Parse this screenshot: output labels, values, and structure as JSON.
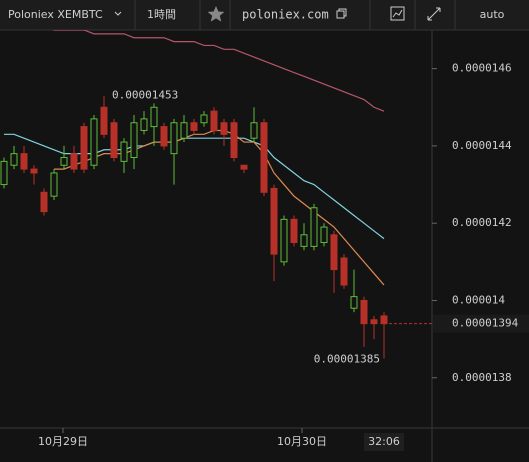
{
  "toolbar": {
    "symbol": "Poloniex XEMBTC",
    "interval": "1時間",
    "site": "poloniex.com",
    "scale": "auto"
  },
  "chart_data": {
    "type": "candlestick",
    "x": [
      0,
      1,
      2,
      3,
      4,
      5,
      6,
      7,
      8,
      9,
      10,
      11,
      12,
      13,
      14,
      15,
      16,
      17,
      18,
      19,
      20,
      21,
      22,
      23,
      24,
      25,
      26,
      27,
      28,
      29,
      30,
      31,
      32,
      33,
      34,
      35,
      36,
      37,
      38
    ],
    "open": [
      1.43e-05,
      1.435e-05,
      1.438e-05,
      1.434e-05,
      1.428e-05,
      1.427e-05,
      1.435e-05,
      1.438e-05,
      1.445e-05,
      1.435e-05,
      1.45e-05,
      1.446e-05,
      1.436e-05,
      1.437e-05,
      1.444e-05,
      1.445e-05,
      1.445e-05,
      1.438e-05,
      1.442e-05,
      1.446e-05,
      1.446e-05,
      1.449e-05,
      1.446e-05,
      1.446e-05,
      1.435e-05,
      1.442e-05,
      1.446e-05,
      1.429e-05,
      1.41e-05,
      1.421e-05,
      1.414e-05,
      1.414e-05,
      1.415e-05,
      1.417e-05,
      1.411e-05,
      1.398e-05,
      1.4e-05,
      1.395e-05,
      1.396e-05
    ],
    "high": [
      1.437e-05,
      1.44e-05,
      1.44e-05,
      1.435e-05,
      1.429e-05,
      1.434e-05,
      1.44e-05,
      1.44e-05,
      1.446e-05,
      1.448e-05,
      1.453e-05,
      1.447e-05,
      1.442e-05,
      1.448e-05,
      1.449e-05,
      1.451e-05,
      1.446e-05,
      1.447e-05,
      1.448e-05,
      1.447e-05,
      1.449e-05,
      1.45e-05,
      1.447e-05,
      1.447e-05,
      1.435e-05,
      1.45e-05,
      1.447e-05,
      1.43e-05,
      1.422e-05,
      1.422e-05,
      1.42e-05,
      1.425e-05,
      1.42e-05,
      1.418e-05,
      1.412e-05,
      1.408e-05,
      1.401e-05,
      1.396e-05,
      1.397e-05
    ],
    "low": [
      1.429e-05,
      1.434e-05,
      1.433e-05,
      1.43e-05,
      1.422e-05,
      1.426e-05,
      1.434e-05,
      1.433e-05,
      1.433e-05,
      1.434e-05,
      1.442e-05,
      1.436e-05,
      1.433e-05,
      1.434e-05,
      1.443e-05,
      1.44e-05,
      1.439e-05,
      1.43e-05,
      1.441e-05,
      1.443e-05,
      1.445e-05,
      1.443e-05,
      1.44e-05,
      1.436e-05,
      1.433e-05,
      1.441e-05,
      1.427e-05,
      1.405e-05,
      1.409e-05,
      1.414e-05,
      1.413e-05,
      1.413e-05,
      1.414e-05,
      1.402e-05,
      1.403e-05,
      1.397e-05,
      1.388e-05,
      1.39e-05,
      1.385e-05
    ],
    "close": [
      1.436e-05,
      1.438e-05,
      1.434e-05,
      1.433e-05,
      1.423e-05,
      1.433e-05,
      1.437e-05,
      1.434e-05,
      1.434e-05,
      1.447e-05,
      1.443e-05,
      1.437e-05,
      1.441e-05,
      1.446e-05,
      1.447e-05,
      1.45e-05,
      1.44e-05,
      1.446e-05,
      1.446e-05,
      1.444e-05,
      1.448e-05,
      1.444e-05,
      1.443e-05,
      1.437e-05,
      1.434e-05,
      1.446e-05,
      1.428e-05,
      1.412e-05,
      1.421e-05,
      1.415e-05,
      1.417e-05,
      1.424e-05,
      1.419e-05,
      1.408e-05,
      1.404e-05,
      1.401e-05,
      1.394e-05,
      1.394e-05,
      1.394e-05
    ],
    "up_color": "#5dbb3a",
    "down_color": "#b83129",
    "series": [
      {
        "color": "#b5566b",
        "values": [
          1.472e-05,
          1.472e-05,
          1.471e-05,
          1.471e-05,
          1.471e-05,
          1.47e-05,
          1.47e-05,
          1.47e-05,
          1.47e-05,
          1.469e-05,
          1.469e-05,
          1.469e-05,
          1.469e-05,
          1.468e-05,
          1.468e-05,
          1.468e-05,
          1.468e-05,
          1.467e-05,
          1.467e-05,
          1.467e-05,
          1.466e-05,
          1.466e-05,
          1.465e-05,
          1.465e-05,
          1.464e-05,
          1.463e-05,
          1.462e-05,
          1.461e-05,
          1.46e-05,
          1.459e-05,
          1.458e-05,
          1.457e-05,
          1.456e-05,
          1.455e-05,
          1.454e-05,
          1.453e-05,
          1.452e-05,
          1.45e-05,
          1.449e-05
        ]
      },
      {
        "color": "#7fd3e0",
        "values": [
          1.443e-05,
          1.443e-05,
          1.442e-05,
          1.441e-05,
          1.44e-05,
          1.439e-05,
          1.438e-05,
          1.438e-05,
          1.438e-05,
          1.438e-05,
          1.439e-05,
          1.439e-05,
          1.439e-05,
          1.44e-05,
          1.44e-05,
          1.441e-05,
          1.441e-05,
          1.441e-05,
          1.442e-05,
          1.442e-05,
          1.442e-05,
          1.442e-05,
          1.442e-05,
          1.442e-05,
          1.442e-05,
          1.441e-05,
          1.44e-05,
          1.437e-05,
          1.435e-05,
          1.433e-05,
          1.431e-05,
          1.43e-05,
          1.428e-05,
          1.426e-05,
          1.424e-05,
          1.422e-05,
          1.42e-05,
          1.418e-05,
          1.416e-05
        ]
      },
      {
        "color": "#e08a4f",
        "values": [
          null,
          null,
          null,
          null,
          null,
          1.434e-05,
          1.434e-05,
          1.435e-05,
          1.436e-05,
          1.437e-05,
          1.438e-05,
          1.438e-05,
          1.438e-05,
          1.439e-05,
          1.44e-05,
          1.441e-05,
          1.441e-05,
          1.441e-05,
          1.442e-05,
          1.443e-05,
          1.443e-05,
          1.444e-05,
          1.444e-05,
          1.443e-05,
          1.441e-05,
          1.441e-05,
          1.438e-05,
          1.433e-05,
          1.43e-05,
          1.427e-05,
          1.425e-05,
          1.423e-05,
          1.421e-05,
          1.419e-05,
          1.416e-05,
          1.413e-05,
          1.41e-05,
          1.407e-05,
          1.404e-05
        ]
      }
    ],
    "xlim": [
      -0.4,
      42.8
    ],
    "xticks": [
      {
        "value": 5.9,
        "label": "10月29日"
      },
      {
        "value": 29.8,
        "label": "10月30日"
      }
    ],
    "countdown": "32:06",
    "ylim": [
      1.367e-05,
      1.47e-05
    ],
    "yticks": [
      1.46e-05,
      1.44e-05,
      1.42e-05,
      1.4e-05,
      1.38e-05
    ],
    "last_color": "#b83129"
  }
}
